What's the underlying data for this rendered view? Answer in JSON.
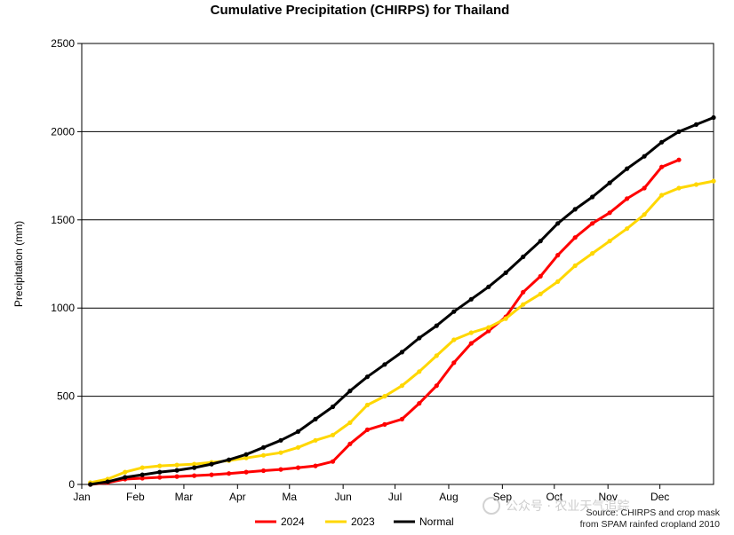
{
  "chart_data": {
    "type": "line",
    "title": "Cumulative Precipitation (CHIRPS) for Thailand",
    "ylabel": "Precipitation (mm)",
    "xlabel": "",
    "ylim": [
      0,
      2500
    ],
    "xlim": [
      1,
      366
    ],
    "yticks": [
      0,
      500,
      1000,
      1500,
      2000,
      2500
    ],
    "month_ticks": [
      {
        "label": "Jan",
        "day": 1
      },
      {
        "label": "Feb",
        "day": 32
      },
      {
        "label": "Mar",
        "day": 60
      },
      {
        "label": "Apr",
        "day": 91
      },
      {
        "label": "Ma",
        "day": 121
      },
      {
        "label": "Jun",
        "day": 152
      },
      {
        "label": "Jul",
        "day": 182
      },
      {
        "label": "Aug",
        "day": 213
      },
      {
        "label": "Sep",
        "day": 244
      },
      {
        "label": "Oct",
        "day": 274
      },
      {
        "label": "Nov",
        "day": 305
      },
      {
        "label": "Dec",
        "day": 335
      }
    ],
    "grid": "horizontal",
    "legend_position": "bottom",
    "series": [
      {
        "name": "2024",
        "color": "#ff0000",
        "x": [
          6,
          16,
          26,
          36,
          46,
          56,
          66,
          76,
          86,
          96,
          106,
          116,
          126,
          136,
          146,
          156,
          166,
          176,
          186,
          196,
          206,
          216,
          226,
          236,
          246,
          256,
          266,
          276,
          286,
          296,
          306,
          316,
          326,
          336,
          346
        ],
        "y": [
          0,
          10,
          30,
          35,
          40,
          45,
          50,
          55,
          62,
          70,
          78,
          85,
          95,
          105,
          130,
          230,
          310,
          340,
          370,
          460,
          560,
          690,
          800,
          870,
          950,
          1090,
          1180,
          1300,
          1400,
          1480,
          1540,
          1620,
          1680,
          1800,
          1840
        ]
      },
      {
        "name": "2023",
        "color": "#ffd700",
        "x": [
          6,
          16,
          26,
          36,
          46,
          56,
          66,
          76,
          86,
          96,
          106,
          116,
          126,
          136,
          146,
          156,
          166,
          176,
          186,
          196,
          206,
          216,
          226,
          236,
          246,
          256,
          266,
          276,
          286,
          296,
          306,
          316,
          326,
          336,
          346,
          356,
          366
        ],
        "y": [
          10,
          30,
          70,
          95,
          105,
          110,
          115,
          125,
          135,
          150,
          165,
          180,
          210,
          250,
          280,
          350,
          450,
          500,
          560,
          640,
          730,
          820,
          860,
          890,
          940,
          1020,
          1080,
          1150,
          1240,
          1310,
          1380,
          1450,
          1530,
          1640,
          1680,
          1700,
          1720
        ]
      },
      {
        "name": "Normal",
        "color": "#000000",
        "x": [
          6,
          16,
          26,
          36,
          46,
          56,
          66,
          76,
          86,
          96,
          106,
          116,
          126,
          136,
          146,
          156,
          166,
          176,
          186,
          196,
          206,
          216,
          226,
          236,
          246,
          256,
          266,
          276,
          286,
          296,
          306,
          316,
          326,
          336,
          346,
          356,
          366
        ],
        "y": [
          0,
          15,
          40,
          55,
          70,
          80,
          95,
          115,
          140,
          170,
          210,
          250,
          300,
          370,
          440,
          530,
          610,
          680,
          750,
          830,
          900,
          980,
          1050,
          1120,
          1200,
          1290,
          1380,
          1480,
          1560,
          1630,
          1710,
          1790,
          1860,
          1940,
          2000,
          2040,
          2080
        ]
      }
    ],
    "annotation": "Source: CHIRPS and crop mask\nfrom SPAM rainfed cropland 2010",
    "watermark": "公众号 · 农业天气追踪"
  }
}
